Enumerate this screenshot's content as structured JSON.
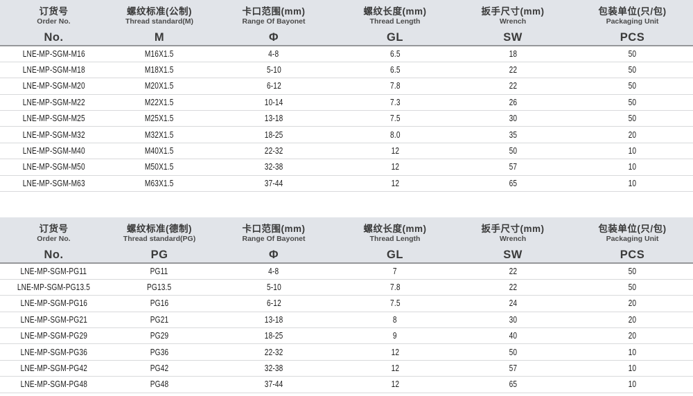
{
  "colors": {
    "header_bg": "#e1e4e9",
    "header_border": "#95979a",
    "row_border": "#d8d9db",
    "header_text": "#3a3a3a",
    "cell_text": "#1c1c1c"
  },
  "tables": [
    {
      "name": "metric",
      "columns": [
        {
          "zh": "订货号",
          "en": "Order No.",
          "code": "No."
        },
        {
          "zh": "螺纹标准(公制)",
          "en": "Thread standard(M)",
          "code": "M"
        },
        {
          "zh": "卡口范围(mm)",
          "en": "Range Of Bayonet",
          "code": "Φ"
        },
        {
          "zh": "螺纹长度(mm)",
          "en": "Thread Length",
          "code": "GL"
        },
        {
          "zh": "扳手尺寸(mm)",
          "en": "Wrench",
          "code": "SW"
        },
        {
          "zh": "包装单位(只/包)",
          "en": "Packaging Unit",
          "code": "PCS"
        }
      ],
      "rows": [
        [
          "LNE-MP-SGM-M16",
          "M16X1.5",
          "4-8",
          "6.5",
          "18",
          "50"
        ],
        [
          "LNE-MP-SGM-M18",
          "M18X1.5",
          "5-10",
          "6.5",
          "22",
          "50"
        ],
        [
          "LNE-MP-SGM-M20",
          "M20X1.5",
          "6-12",
          "7.8",
          "22",
          "50"
        ],
        [
          "LNE-MP-SGM-M22",
          "M22X1.5",
          "10-14",
          "7.3",
          "26",
          "50"
        ],
        [
          "LNE-MP-SGM-M25",
          "M25X1.5",
          "13-18",
          "7.5",
          "30",
          "50"
        ],
        [
          "LNE-MP-SGM-M32",
          "M32X1.5",
          "18-25",
          "8.0",
          "35",
          "20"
        ],
        [
          "LNE-MP-SGM-M40",
          "M40X1.5",
          "22-32",
          "12",
          "50",
          "10"
        ],
        [
          "LNE-MP-SGM-M50",
          "M50X1.5",
          "32-38",
          "12",
          "57",
          "10"
        ],
        [
          "LNE-MP-SGM-M63",
          "M63X1.5",
          "37-44",
          "12",
          "65",
          "10"
        ]
      ]
    },
    {
      "name": "pg",
      "columns": [
        {
          "zh": "订货号",
          "en": "Order No.",
          "code": "No."
        },
        {
          "zh": "螺纹标准(德制)",
          "en": "Thread standard(PG)",
          "code": "PG"
        },
        {
          "zh": "卡口范围(mm)",
          "en": "Range Of Bayonet",
          "code": "Φ"
        },
        {
          "zh": "螺纹长度(mm)",
          "en": "Thread Length",
          "code": "GL"
        },
        {
          "zh": "扳手尺寸(mm)",
          "en": "Wrench",
          "code": "SW"
        },
        {
          "zh": "包装单位(只/包)",
          "en": "Packaging Unit",
          "code": "PCS"
        }
      ],
      "rows": [
        [
          "LNE-MP-SGM-PG11",
          "PG11",
          "4-8",
          "7",
          "22",
          "50"
        ],
        [
          "LNE-MP-SGM-PG13.5",
          "PG13.5",
          "5-10",
          "7.8",
          "22",
          "50"
        ],
        [
          "LNE-MP-SGM-PG16",
          "PG16",
          "6-12",
          "7.5",
          "24",
          "20"
        ],
        [
          "LNE-MP-SGM-PG21",
          "PG21",
          "13-18",
          "8",
          "30",
          "20"
        ],
        [
          "LNE-MP-SGM-PG29",
          "PG29",
          "18-25",
          "9",
          "40",
          "20"
        ],
        [
          "LNE-MP-SGM-PG36",
          "PG36",
          "22-32",
          "12",
          "50",
          "10"
        ],
        [
          "LNE-MP-SGM-PG42",
          "PG42",
          "32-38",
          "12",
          "57",
          "10"
        ],
        [
          "LNE-MP-SGM-PG48",
          "PG48",
          "37-44",
          "12",
          "65",
          "10"
        ]
      ]
    }
  ]
}
